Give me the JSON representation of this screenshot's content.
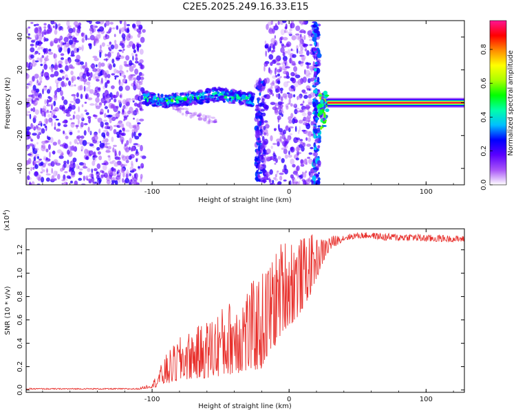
{
  "figure": {
    "title": "C2E5.2025.249.16.33.E15"
  },
  "colors": {
    "background": "#ffffff",
    "axis": "#000000",
    "snr_line": "#e8302c",
    "spec_scatter": "#6a20e0",
    "spec_scatter_light": "#c9a8f2"
  },
  "chart_data": [
    {
      "type": "heatmap",
      "name": "spectrogram",
      "title": "C2E5.2025.249.16.33.E15",
      "xlabel": "Height of straight line (km)",
      "ylabel": "Frequency (Hz)",
      "xlim": [
        -192,
        128
      ],
      "ylim": [
        -50,
        50
      ],
      "xticks": [
        -100,
        0,
        100
      ],
      "yticks": [
        -40,
        -20,
        0,
        20,
        40
      ],
      "colorbar": {
        "label": "Normalized spectral amplitude",
        "range": [
          0,
          0.97
        ],
        "ticks": [
          0.0,
          0.2,
          0.4,
          0.6,
          0.8
        ],
        "colormap": [
          "#ffffff",
          "#a855f7",
          "#5b00ff",
          "#0000ff",
          "#00bfff",
          "#00ffaa",
          "#00ff00",
          "#aaff00",
          "#ffff00",
          "#ff8c00",
          "#ff0000",
          "#ff1493"
        ]
      },
      "regions": [
        {
          "kind": "noise",
          "x": [
            -192,
            -106
          ],
          "y": [
            -50,
            50
          ],
          "amplitude": 0.15
        },
        {
          "kind": "signal-band",
          "x": [
            -106,
            -26
          ],
          "center_hz": [
            3,
            2,
            1,
            2,
            3,
            4,
            5,
            4,
            3,
            2
          ],
          "spread_hz": 4,
          "amplitude": 0.45
        },
        {
          "kind": "signal-tail",
          "x": [
            -85,
            -52
          ],
          "center_hz": [
            -3,
            -6,
            -9,
            -12
          ],
          "amplitude": 0.12
        },
        {
          "kind": "transition",
          "x": [
            -24,
            -18
          ],
          "y": [
            -48,
            14
          ],
          "amplitude": 0.2
        },
        {
          "kind": "noise",
          "x": [
            -18,
            20
          ],
          "y": [
            -50,
            50
          ],
          "amplitude": 0.15
        },
        {
          "kind": "transition",
          "x": [
            18,
            22
          ],
          "y": [
            -50,
            48
          ],
          "amplitude": 0.25
        },
        {
          "kind": "transition",
          "x": [
            22,
            28
          ],
          "y": [
            -16,
            6
          ],
          "amplitude": 0.4
        },
        {
          "kind": "carrier",
          "x": [
            28,
            128
          ],
          "center_hz": 0,
          "amplitude": 0.95
        }
      ]
    },
    {
      "type": "line",
      "name": "snr",
      "xlabel": "Height of straight line (km)",
      "ylabel": "SNR (10 * v/v)",
      "exponent_label": "(x10",
      "exponent_power": "4",
      "exponent_close": ")",
      "xlim": [
        -192,
        128
      ],
      "ylim": [
        -0.02,
        1.38
      ],
      "xticks": [
        -100,
        0,
        100
      ],
      "yticks": [
        0.0,
        0.2,
        0.4,
        0.6,
        0.8,
        1.0,
        1.2
      ],
      "series": [
        {
          "name": "SNR",
          "x": [
            -192,
            -150,
            -110,
            -100,
            -95,
            -90,
            -80,
            -70,
            -60,
            -50,
            -40,
            -30,
            -20,
            -15,
            -10,
            -5,
            0,
            5,
            10,
            15,
            20,
            25,
            30,
            40,
            50,
            60,
            70,
            80,
            90,
            100,
            110,
            120,
            128
          ],
          "floor": [
            0.005,
            0.005,
            0.005,
            0.02,
            0.03,
            0.05,
            0.08,
            0.1,
            0.1,
            0.12,
            0.14,
            0.16,
            0.18,
            0.3,
            0.38,
            0.5,
            0.55,
            0.6,
            0.7,
            0.8,
            0.95,
            1.1,
            1.2,
            1.28,
            1.3,
            1.3,
            1.28,
            1.28,
            1.28,
            1.27,
            1.27,
            1.27,
            1.27
          ],
          "peak": [
            0.015,
            0.015,
            0.015,
            0.06,
            0.18,
            0.3,
            0.45,
            0.52,
            0.6,
            0.7,
            0.8,
            0.9,
            1.0,
            1.1,
            1.18,
            1.3,
            1.32,
            1.33,
            1.3,
            1.35,
            1.3,
            1.3,
            1.32,
            1.33,
            1.35,
            1.35,
            1.34,
            1.34,
            1.34,
            1.33,
            1.33,
            1.32,
            1.32
          ]
        }
      ]
    }
  ]
}
